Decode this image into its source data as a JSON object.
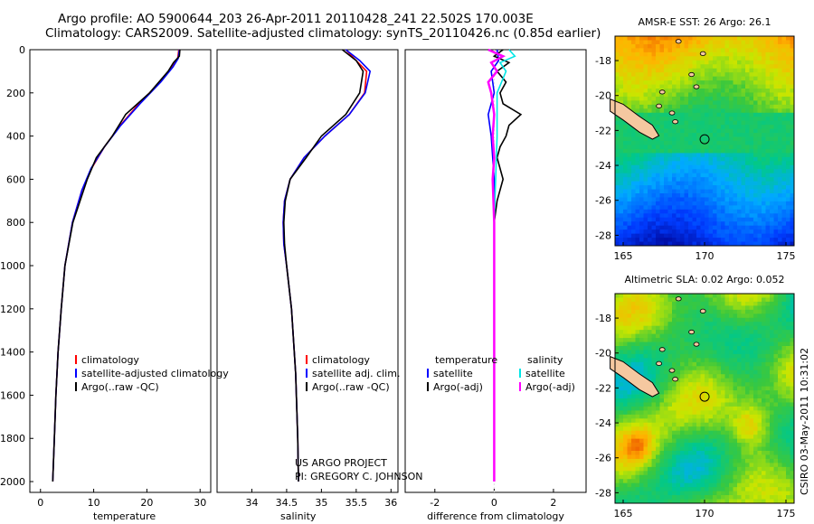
{
  "header": {
    "line1": "Argo profile: AO 5900644_203 26-Apr-2011 20110428_241 22.502S 170.003E",
    "line2": "Climatology: CARS2009. Satellite-adjusted climatology: synTS_20110426.nc (0.85d earlier)"
  },
  "side_label": "CSIRO 03-May-2011 10:31:02",
  "colors": {
    "red": "#ff0000",
    "blue": "#0000ff",
    "black": "#000000",
    "cyan": "#00e6e6",
    "magenta": "#ff00ff",
    "land": "#f5c8a0"
  },
  "chart_data": [
    {
      "type": "line",
      "id": "temperature",
      "xlabel": "temperature",
      "ylabel": "",
      "title": "",
      "xlim": [
        -2,
        32
      ],
      "ylim": [
        2050,
        0
      ],
      "xticks": [
        0,
        10,
        20,
        30
      ],
      "yticks": [
        0,
        200,
        400,
        600,
        800,
        1000,
        1200,
        1400,
        1600,
        1800,
        2000
      ],
      "legend": [
        "climatology",
        "satellite-adjusted climatology",
        "Argo(..raw -QC)"
      ],
      "series": [
        {
          "name": "climatology",
          "color": "#ff0000",
          "depth": [
            0,
            40,
            80,
            150,
            250,
            350,
            450,
            550,
            650,
            800,
            1000,
            1200,
            1400,
            1600,
            1800,
            2000
          ],
          "values": [
            26.0,
            25.8,
            24.8,
            22.5,
            18.5,
            15.0,
            12.0,
            9.6,
            7.8,
            6.0,
            4.6,
            3.9,
            3.3,
            2.9,
            2.6,
            2.3
          ]
        },
        {
          "name": "satellite-adjusted climatology",
          "color": "#0000ff",
          "depth": [
            0,
            40,
            80,
            150,
            250,
            350,
            450,
            550,
            650,
            800,
            1000,
            1200,
            1400,
            1600,
            1800,
            2000
          ],
          "values": [
            26.1,
            25.9,
            24.9,
            22.6,
            18.7,
            15.1,
            12.0,
            9.5,
            7.8,
            6.0,
            4.6,
            3.9,
            3.3,
            2.9,
            2.6,
            2.3
          ]
        },
        {
          "name": "Argo(..raw -QC)",
          "color": "#000000",
          "depth": [
            0,
            30,
            60,
            100,
            200,
            300,
            400,
            500,
            600,
            800,
            1000,
            1200,
            1400,
            1600,
            1800,
            2000
          ],
          "values": [
            26.2,
            26.1,
            25.0,
            24.0,
            20.5,
            16.0,
            13.5,
            10.5,
            8.8,
            6.1,
            4.6,
            3.9,
            3.3,
            2.9,
            2.6,
            2.3
          ]
        }
      ]
    },
    {
      "type": "line",
      "id": "salinity",
      "xlabel": "salinity",
      "title": "",
      "xlim": [
        33.5,
        36.1
      ],
      "ylim": [
        2050,
        0
      ],
      "xticks": [
        34,
        34.5,
        35,
        35.5,
        36
      ],
      "legend": [
        "climatology",
        "satellite adj. clim.",
        "Argo(..raw -QC)"
      ],
      "series": [
        {
          "name": "climatology",
          "color": "#ff0000",
          "depth": [
            0,
            50,
            100,
            200,
            300,
            400,
            500,
            600,
            700,
            800,
            900,
            1000,
            1200,
            1500,
            1800,
            2000
          ],
          "values": [
            35.35,
            35.5,
            35.65,
            35.62,
            35.4,
            35.05,
            34.75,
            34.55,
            34.47,
            34.45,
            34.46,
            34.5,
            34.57,
            34.63,
            34.66,
            34.67
          ]
        },
        {
          "name": "satellite adj. clim.",
          "color": "#0000ff",
          "depth": [
            0,
            50,
            100,
            200,
            300,
            400,
            500,
            600,
            700,
            800,
            900,
            1000,
            1200,
            1500,
            1800,
            2000
          ],
          "values": [
            35.35,
            35.55,
            35.7,
            35.63,
            35.4,
            35.05,
            34.75,
            34.55,
            34.47,
            34.45,
            34.46,
            34.5,
            34.57,
            34.63,
            34.66,
            34.67
          ]
        },
        {
          "name": "Argo(..raw -QC)",
          "color": "#000000",
          "depth": [
            0,
            50,
            100,
            200,
            300,
            400,
            500,
            600,
            700,
            800,
            900,
            1000,
            1200,
            1500,
            1800,
            2000
          ],
          "values": [
            35.3,
            35.5,
            35.6,
            35.55,
            35.35,
            35.0,
            34.78,
            34.55,
            34.48,
            34.46,
            34.47,
            34.5,
            34.57,
            34.63,
            34.66,
            34.67
          ]
        }
      ]
    },
    {
      "type": "line",
      "id": "difference",
      "xlabel": "difference from climatology",
      "title": "",
      "xlim": [
        -3,
        3.1
      ],
      "ylim": [
        2050,
        0
      ],
      "xticks": [
        -2,
        0,
        2
      ],
      "legend": {
        "temperature_head": "temperature",
        "salinity_head": "salinity",
        "temp_items": [
          "satellite",
          "Argo(-adj)"
        ],
        "sal_items": [
          "satellite",
          "Argo(-adj)"
        ]
      },
      "series": [
        {
          "name": "temperature satellite",
          "color": "#0000ff",
          "depth": [
            0,
            50,
            100,
            200,
            300,
            400,
            600,
            800,
            1000,
            1500,
            2000
          ],
          "values": [
            0.1,
            0.15,
            -0.1,
            0.0,
            -0.2,
            -0.1,
            0.0,
            0.0,
            0.0,
            0.0,
            0.0
          ]
        },
        {
          "name": "temperature Argo(-adj)",
          "color": "#000000",
          "depth": [
            0,
            30,
            60,
            100,
            150,
            200,
            250,
            300,
            350,
            400,
            450,
            500,
            600,
            700,
            800,
            1000,
            1500,
            2000
          ],
          "values": [
            0.3,
            0.0,
            0.5,
            0.1,
            0.4,
            0.2,
            0.3,
            0.9,
            0.5,
            0.4,
            0.2,
            0.1,
            0.3,
            0.1,
            0.0,
            0.0,
            0.0,
            0.0
          ]
        },
        {
          "name": "salinity satellite",
          "color": "#00e6e6",
          "depth": [
            0,
            30,
            60,
            100,
            200,
            400,
            600,
            800,
            1000,
            1500,
            2000
          ],
          "values": [
            0.5,
            0.7,
            0.2,
            0.4,
            0.1,
            0.1,
            0.05,
            0.0,
            0.0,
            0.0,
            0.0
          ]
        },
        {
          "name": "salinity Argo(-adj)",
          "color": "#ff00ff",
          "depth": [
            0,
            30,
            60,
            100,
            150,
            200,
            300,
            400,
            500,
            600,
            800,
            1000,
            1500,
            2000
          ],
          "values": [
            -0.2,
            0.3,
            -0.1,
            0.1,
            -0.2,
            -0.1,
            0.0,
            -0.05,
            0.0,
            -0.05,
            0.0,
            0.0,
            0.0,
            0.0
          ]
        }
      ]
    },
    {
      "type": "heatmap",
      "id": "sst_map",
      "title": "AMSR-E SST: 26 Argo: 26.1",
      "xlim": [
        164.5,
        175.5
      ],
      "ylim": [
        -28.6,
        -16.6
      ],
      "xticks": [
        165,
        170,
        175
      ],
      "yticks": [
        -18,
        -20,
        -22,
        -24,
        -26,
        -28
      ],
      "float_location": [
        170.003,
        -22.502
      ]
    },
    {
      "type": "heatmap",
      "id": "sla_map",
      "title": "Altimetric SLA: 0.02 Argo: 0.052",
      "xlim": [
        164.5,
        175.5
      ],
      "ylim": [
        -28.6,
        -16.6
      ],
      "xticks": [
        165,
        170,
        175
      ],
      "yticks": [
        -18,
        -20,
        -22,
        -24,
        -26,
        -28
      ],
      "float_location": [
        170.003,
        -22.502
      ]
    }
  ],
  "annotation": {
    "line1": "US ARGO PROJECT",
    "line2": "PI: GREGORY C. JOHNSON"
  }
}
